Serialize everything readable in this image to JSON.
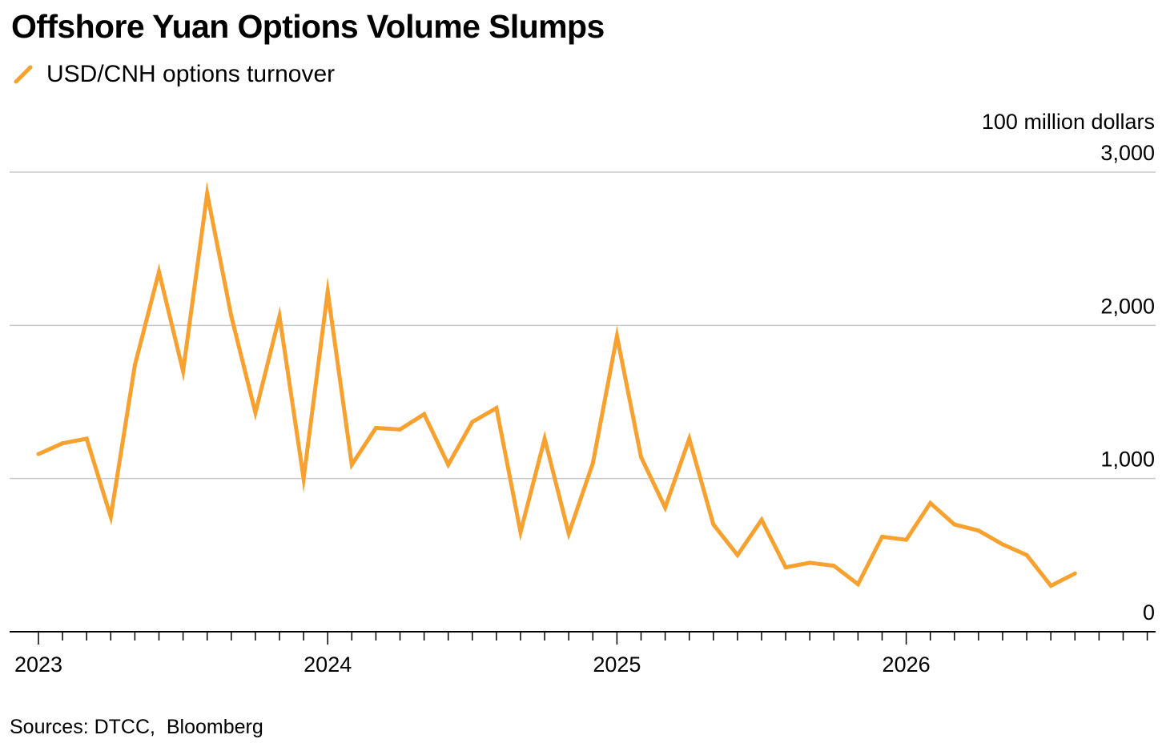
{
  "title": "Offshore Yuan Options Volume Slumps",
  "source": "Sources: DTCC,  Bloomberg",
  "legend": [
    {
      "label": "USD/CNH options turnover",
      "color": "#F8A12E"
    }
  ],
  "colors": {
    "series": "#F8A12E",
    "grid": "#C8C8C8",
    "axis": "#000000"
  },
  "chart_data": {
    "type": "line",
    "title": "Offshore Yuan Options Volume Slumps",
    "ylabel": "100 million dollars",
    "xlabel": "",
    "ylim": [
      0,
      3000
    ],
    "yticks": [
      0,
      1000,
      2000,
      3000
    ],
    "ytick_labels": [
      "0",
      "1,000",
      "2,000",
      "3,000"
    ],
    "xlim": [
      "2023-01",
      "2026-11"
    ],
    "xtick_labels": [
      "2023",
      "2024",
      "2025",
      "2026"
    ],
    "grid": true,
    "legend_position": "top-left",
    "series": [
      {
        "name": "USD/CNH options turnover",
        "color": "#F8A12E",
        "x": [
          "2023-01",
          "2023-02",
          "2023-03",
          "2023-04",
          "2023-05",
          "2023-06",
          "2023-07",
          "2023-08",
          "2023-09",
          "2023-10",
          "2023-11",
          "2023-12",
          "2024-01",
          "2024-02",
          "2024-03",
          "2024-04",
          "2024-05",
          "2024-06",
          "2024-07",
          "2024-08",
          "2024-09",
          "2024-10",
          "2024-11",
          "2024-12",
          "2025-01",
          "2025-02",
          "2025-03",
          "2025-04",
          "2025-05",
          "2025-06",
          "2025-07",
          "2025-08",
          "2025-09",
          "2025-10",
          "2025-11",
          "2025-12",
          "2026-01",
          "2026-02",
          "2026-03",
          "2026-04",
          "2026-05",
          "2026-06",
          "2026-07",
          "2026-08"
        ],
        "values": [
          1160,
          1230,
          1260,
          750,
          1740,
          2350,
          1700,
          2860,
          2060,
          1430,
          2060,
          1000,
          2220,
          1090,
          1330,
          1320,
          1420,
          1090,
          1370,
          1460,
          650,
          1260,
          640,
          1100,
          1930,
          1140,
          810,
          1260,
          700,
          500,
          730,
          420,
          450,
          430,
          310,
          620,
          600,
          840,
          700,
          660,
          570,
          500,
          300,
          380
        ]
      }
    ]
  }
}
